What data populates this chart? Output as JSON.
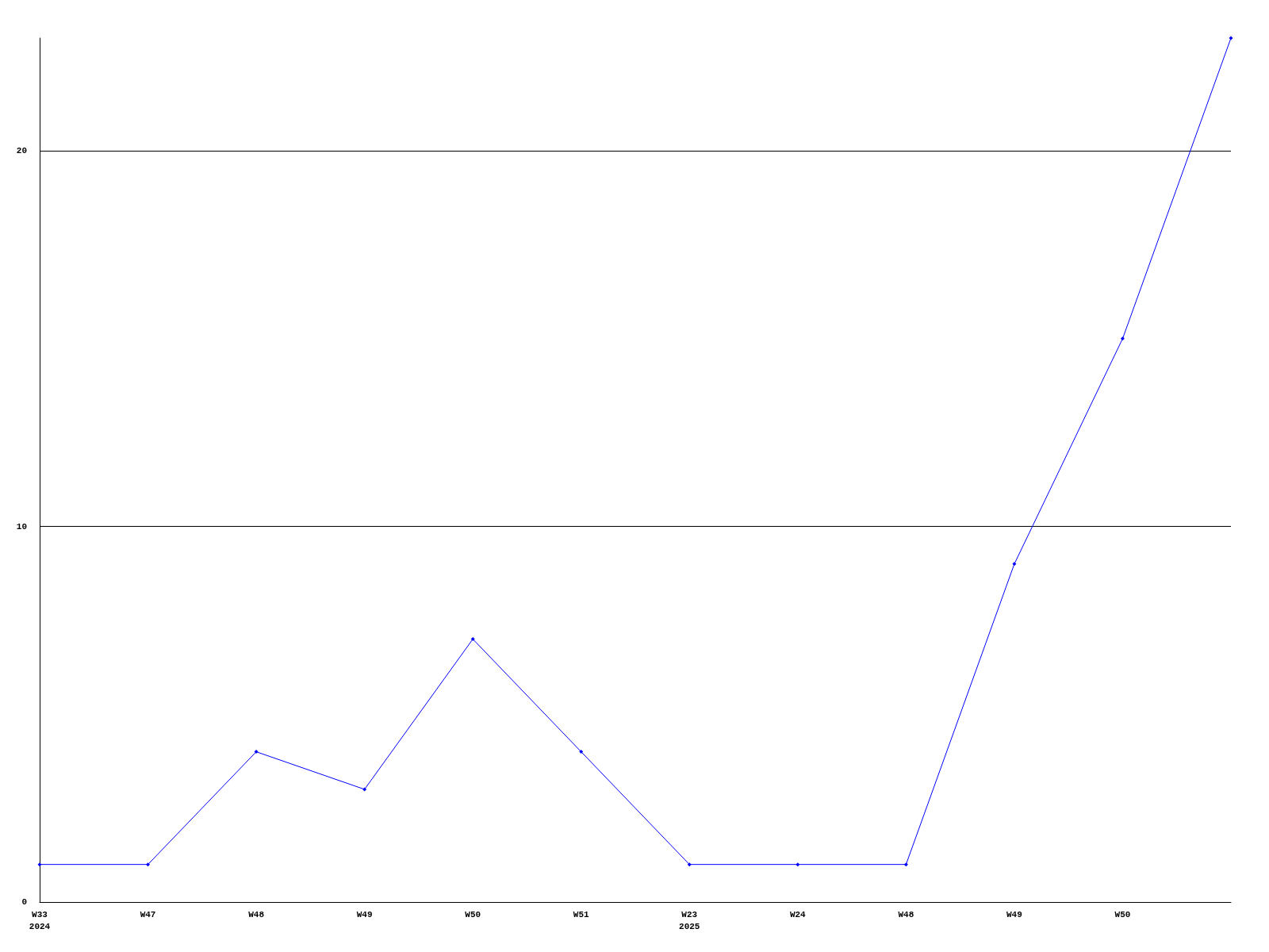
{
  "chart_data": {
    "type": "line",
    "categories": [
      "W33\n2024",
      "W47",
      "W48",
      "W49",
      "W50",
      "W51",
      "W23\n2025",
      "W24",
      "W48",
      "W49",
      "W50",
      null
    ],
    "series": [
      {
        "color": "#0000ff",
        "values": [
          1,
          1,
          4,
          3,
          7,
          4,
          1,
          1,
          1,
          9,
          15,
          23
        ]
      }
    ],
    "ylim": [
      0,
      23
    ],
    "yticks": [
      0,
      10,
      20
    ],
    "grid": "y",
    "marker": "diamond",
    "line_style": "solid"
  }
}
